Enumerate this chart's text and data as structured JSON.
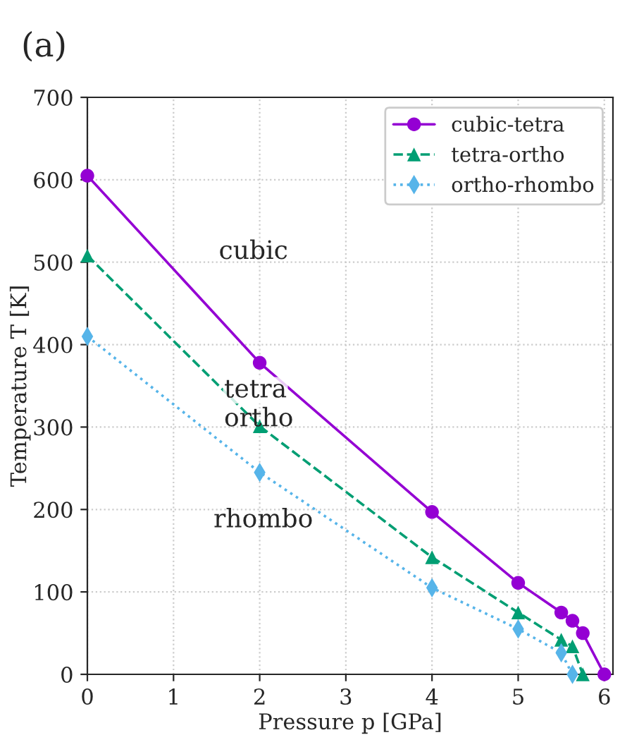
{
  "chart_data": {
    "type": "line",
    "title": "(a)",
    "xlabel": "Pressure p [GPa]",
    "ylabel": "Temperature T [K]",
    "xlim": [
      0,
      6.1
    ],
    "ylim": [
      0,
      700
    ],
    "xticks": [
      0,
      1,
      2,
      3,
      4,
      5,
      6
    ],
    "yticks": [
      0,
      100,
      200,
      300,
      400,
      500,
      600,
      700
    ],
    "grid": true,
    "legend": "top right",
    "series": [
      {
        "name": "cubic-tetra",
        "color": "#9400d3",
        "marker": "circle",
        "line_style": "solid",
        "x": [
          0,
          2,
          4,
          5,
          5.5,
          5.63,
          5.75,
          6
        ],
        "values": [
          605,
          378,
          197,
          111,
          75,
          65,
          50,
          0
        ]
      },
      {
        "name": "tetra-ortho",
        "color": "#009e73",
        "marker": "triangle",
        "line_style": "dashed",
        "x": [
          0,
          2,
          4,
          5,
          5.5,
          5.63,
          5.75
        ],
        "values": [
          508,
          301,
          142,
          75,
          42,
          34,
          0
        ]
      },
      {
        "name": "ortho-rhombo",
        "color": "#56b4e9",
        "marker": "diamond",
        "line_style": "dotted",
        "x": [
          0,
          2,
          4,
          5,
          5.5,
          5.63
        ],
        "values": [
          410,
          245,
          105,
          55,
          26,
          0
        ]
      }
    ],
    "annotations": [
      "cubic",
      "tetra",
      "ortho",
      "rhombo"
    ]
  }
}
